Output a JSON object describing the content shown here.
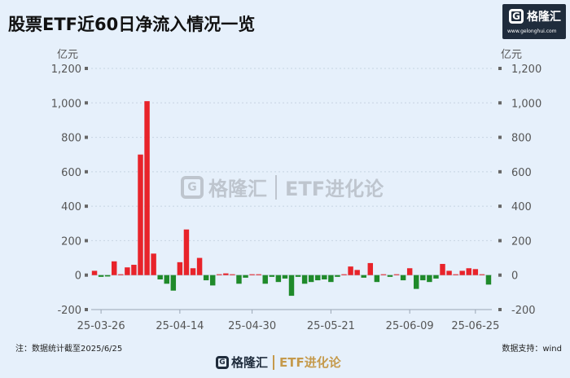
{
  "header": {
    "title": "股票ETF近60日净流入情况一览"
  },
  "brand": {
    "name": "格隆汇",
    "url": "www.gelonghui.com",
    "logo_letter": "G",
    "sub_brand": "ETF进化论"
  },
  "footer": {
    "note": "注：数据统计截至2025/6/25",
    "source": "数据支持：wind"
  },
  "colors": {
    "positive": "#e8232a",
    "negative": "#1f8a2a",
    "background": "#e6f0fb",
    "grid": "#c7d3e2"
  },
  "chart_data": {
    "type": "bar",
    "ylabel_left": "亿元",
    "ylabel_right": "亿元",
    "ylim": [
      -200,
      1200
    ],
    "yticks": [
      -200,
      0,
      200,
      400,
      600,
      800,
      "1,000",
      "1,200"
    ],
    "ytick_values": [
      -200,
      0,
      200,
      400,
      600,
      800,
      1000,
      1200
    ],
    "date_labels": [
      "25-03-26",
      "25-04-14",
      "25-04-30",
      "25-05-21",
      "25-06-09",
      "25-06-25"
    ],
    "date_label_index": [
      1,
      13,
      24,
      36,
      48,
      58
    ],
    "grid": true,
    "legend": "none",
    "values": [
      25,
      -10,
      -8,
      80,
      5,
      45,
      60,
      700,
      1010,
      125,
      -25,
      -50,
      -90,
      75,
      265,
      40,
      100,
      -30,
      -60,
      5,
      10,
      5,
      -50,
      -15,
      5,
      5,
      -50,
      -10,
      -40,
      -20,
      -120,
      -10,
      -50,
      -40,
      -30,
      -25,
      -40,
      -10,
      5,
      50,
      30,
      -15,
      70,
      -40,
      5,
      -10,
      5,
      -30,
      40,
      -80,
      -30,
      -40,
      -20,
      65,
      25,
      5,
      25,
      40,
      35,
      5,
      -55
    ]
  }
}
